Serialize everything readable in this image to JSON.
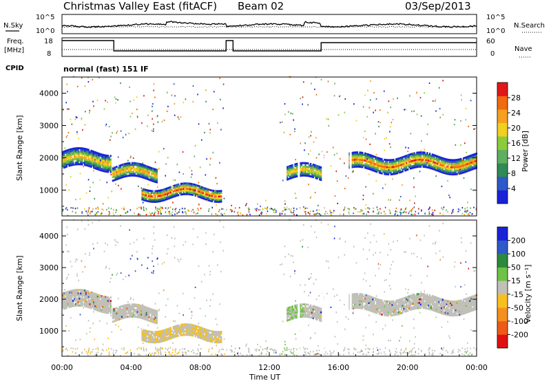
{
  "header": {
    "radar_title": "Christmas Valley East (fitACF)",
    "beam": "Beam 02",
    "date": "03/Sep/2013"
  },
  "noise_panel": {
    "left_label": "N.Sky",
    "right_label": "N.Search",
    "left_ticks": [
      "10^5",
      "10^0"
    ],
    "right_ticks": [
      "10^5",
      "10^0"
    ]
  },
  "freq_panel": {
    "left_label_line1": "Freq.",
    "left_label_line2": "[MHz]",
    "right_label": "Nave",
    "left_ticks": [
      "18",
      "8"
    ],
    "right_ticks": [
      "60",
      "0"
    ]
  },
  "cpid": {
    "label": "CPID",
    "value": "normal (fast) 151 IF"
  },
  "colors": {
    "power_scale": [
      "#1a22d8",
      "#2f58c9",
      "#2f8a55",
      "#5fae62",
      "#8ccb3c",
      "#f0d020",
      "#f7a020",
      "#f06a10",
      "#e01818"
    ],
    "velocity_scale": [
      "#1a22d8",
      "#2f58c9",
      "#2c8a3c",
      "#6fc248",
      "#c0c0b8",
      "#f7c020",
      "#f49020",
      "#ef5a18",
      "#e01010"
    ]
  },
  "chart_data": [
    {
      "type": "heatmap",
      "title": "",
      "ylabel": "Slant Range [km]",
      "xlabel": "",
      "ylim": [
        200,
        4500
      ],
      "yticks": [
        "1000",
        "2000",
        "3000",
        "4000"
      ],
      "colorbar": {
        "label": "Power [dB]",
        "range": [
          0,
          32
        ],
        "tick_labels": [
          "4",
          "8",
          "12",
          "16",
          "20",
          "24",
          "28"
        ]
      },
      "echo_bands": [
        {
          "t_start": 0.0,
          "t_end": 2.8,
          "range_center": 1900,
          "width": 500,
          "peak_db": 24
        },
        {
          "t_start": 2.9,
          "t_end": 5.5,
          "range_center": 1500,
          "width": 400,
          "peak_db": 26
        },
        {
          "t_start": 4.6,
          "t_end": 9.2,
          "range_center": 900,
          "width": 350,
          "peak_db": 30
        },
        {
          "t_start": 13.0,
          "t_end": 15.0,
          "range_center": 1500,
          "width": 400,
          "peak_db": 24
        },
        {
          "t_start": 16.6,
          "t_end": 24.0,
          "range_center": 1800,
          "width": 450,
          "peak_db": 28
        }
      ]
    },
    {
      "type": "heatmap",
      "title": "",
      "ylabel": "Slant Range [km]",
      "xlabel": "Time UT",
      "ylim": [
        200,
        4500
      ],
      "yticks": [
        "1000",
        "2000",
        "3000",
        "4000"
      ],
      "x_tick_labels": [
        "00:00",
        "04:00",
        "08:00",
        "12:00",
        "16:00",
        "20:00",
        "00:00"
      ],
      "colorbar": {
        "label": "Velocity [m s⁻¹]",
        "tick_labels": [
          "200",
          "100",
          "50",
          "15",
          "-15",
          "-50",
          "-100",
          "-200"
        ]
      }
    }
  ]
}
